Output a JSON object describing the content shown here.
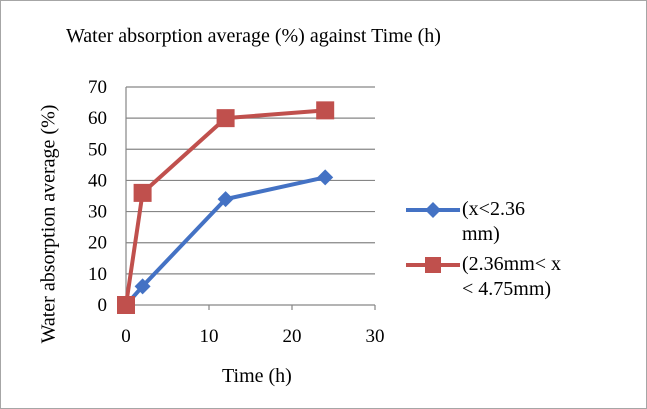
{
  "chart_data": {
    "type": "line",
    "title": "Water absorption average  (%) against  Time (h)",
    "xlabel": "Time (h)",
    "ylabel": "Water absorption average (%)",
    "xlim": [
      0,
      30
    ],
    "ylim": [
      0,
      70
    ],
    "x_ticks": [
      0,
      10,
      20,
      30
    ],
    "y_ticks": [
      0,
      10,
      20,
      30,
      40,
      50,
      60,
      70
    ],
    "grid": "horizontal",
    "legend_position": "right",
    "series": [
      {
        "name": "(x<2.36 mm)",
        "color": "#4472c4",
        "marker": "diamond",
        "points": [
          [
            0,
            0
          ],
          [
            2,
            6
          ],
          [
            12,
            34
          ],
          [
            24,
            41
          ]
        ]
      },
      {
        "name": "(2.36mm< x < 4.75mm)",
        "color": "#c0504d",
        "marker": "square",
        "points": [
          [
            0,
            0
          ],
          [
            2,
            36
          ],
          [
            12,
            60
          ],
          [
            24,
            62.5
          ]
        ]
      }
    ]
  }
}
